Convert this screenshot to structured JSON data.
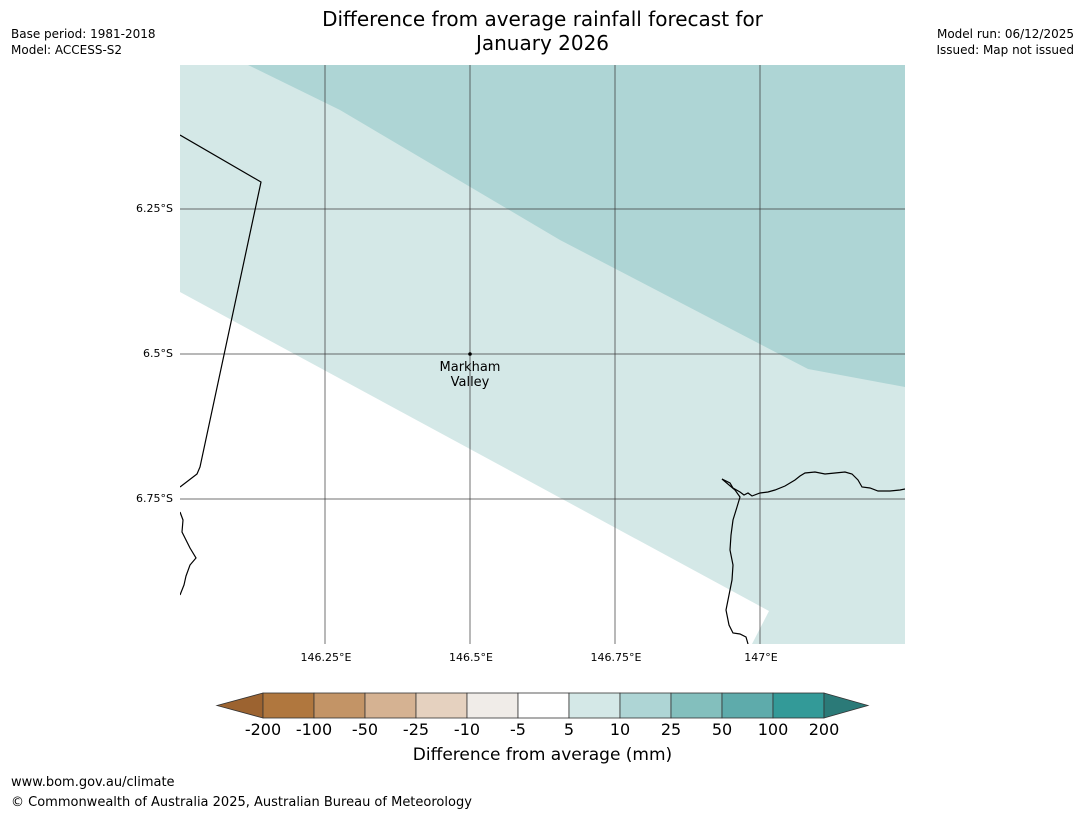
{
  "title": {
    "line1": "Difference from average rainfall forecast for",
    "line2": "January 2026"
  },
  "meta": {
    "base_period": "Base period: 1981-2018",
    "model": "Model: ACCESS-S2",
    "model_run": "Model run: 06/12/2025",
    "issued": "Issued: Map not issued"
  },
  "map": {
    "lat_labels": [
      "6.25°S",
      "6.5°S",
      "6.75°S"
    ],
    "lon_labels": [
      "146.25°E",
      "146.5°E",
      "146.75°E",
      "147°E"
    ],
    "place": {
      "name_line1": "Markham",
      "name_line2": "Valley"
    },
    "colors": {
      "band_5_10": "#d4e8e7",
      "band_10_25": "#aed5d5",
      "gridline": "#333333",
      "coast": "#000000"
    }
  },
  "colorbar": {
    "label": "Difference from average (mm)",
    "ticks": [
      "-200",
      "-100",
      "-50",
      "-25",
      "-10",
      "-5",
      "5",
      "10",
      "25",
      "50",
      "100",
      "200"
    ],
    "colors": [
      "#9c6330",
      "#b0773e",
      "#c39466",
      "#d5b292",
      "#e5d1bf",
      "#f0ece8",
      "#ffffff",
      "#d4e8e7",
      "#aed5d5",
      "#83bfbd",
      "#5eabab",
      "#339a98",
      "#2b7a78"
    ]
  },
  "footer": {
    "url": "www.bom.gov.au/climate",
    "copyright": "© Commonwealth of Australia 2025, Australian Bureau of Meteorology"
  }
}
